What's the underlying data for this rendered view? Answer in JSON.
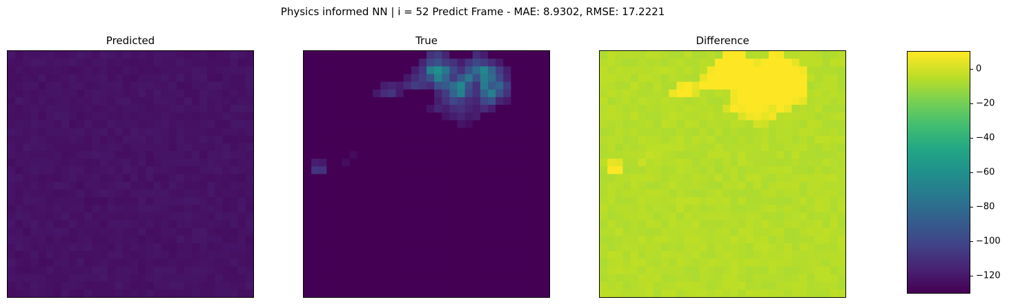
{
  "chart_data": [
    {
      "type": "heatmap",
      "title": "Predicted",
      "grid_size": 32,
      "base_value": -123,
      "value_range": [
        -130,
        10
      ]
    },
    {
      "type": "heatmap",
      "title": "True",
      "grid_size": 32,
      "base_value": -130,
      "value_range": [
        -130,
        10
      ],
      "hot_cells": [
        {
          "row": 0,
          "col": 16,
          "value": -110
        },
        {
          "row": 0,
          "col": 17,
          "value": -105
        },
        {
          "row": 0,
          "col": 18,
          "value": -115
        },
        {
          "row": 0,
          "col": 22,
          "value": -112
        },
        {
          "row": 0,
          "col": 23,
          "value": -118
        },
        {
          "row": 1,
          "col": 15,
          "value": -115
        },
        {
          "row": 1,
          "col": 16,
          "value": -100
        },
        {
          "row": 1,
          "col": 17,
          "value": -95
        },
        {
          "row": 1,
          "col": 18,
          "value": -105
        },
        {
          "row": 1,
          "col": 19,
          "value": -110
        },
        {
          "row": 1,
          "col": 20,
          "value": -118
        },
        {
          "row": 1,
          "col": 21,
          "value": -108
        },
        {
          "row": 1,
          "col": 22,
          "value": -100
        },
        {
          "row": 1,
          "col": 23,
          "value": -105
        },
        {
          "row": 1,
          "col": 24,
          "value": -112
        },
        {
          "row": 1,
          "col": 25,
          "value": -120
        },
        {
          "row": 2,
          "col": 14,
          "value": -118
        },
        {
          "row": 2,
          "col": 15,
          "value": -108
        },
        {
          "row": 2,
          "col": 16,
          "value": -70
        },
        {
          "row": 2,
          "col": 17,
          "value": -60
        },
        {
          "row": 2,
          "col": 18,
          "value": -75
        },
        {
          "row": 2,
          "col": 19,
          "value": -100
        },
        {
          "row": 2,
          "col": 20,
          "value": -110
        },
        {
          "row": 2,
          "col": 21,
          "value": -95
        },
        {
          "row": 2,
          "col": 22,
          "value": -80
        },
        {
          "row": 2,
          "col": 23,
          "value": -65
        },
        {
          "row": 2,
          "col": 24,
          "value": -85
        },
        {
          "row": 2,
          "col": 25,
          "value": -105
        },
        {
          "row": 2,
          "col": 26,
          "value": -118
        },
        {
          "row": 3,
          "col": 13,
          "value": -120
        },
        {
          "row": 3,
          "col": 14,
          "value": -112
        },
        {
          "row": 3,
          "col": 15,
          "value": -105
        },
        {
          "row": 3,
          "col": 16,
          "value": -95
        },
        {
          "row": 3,
          "col": 17,
          "value": -68
        },
        {
          "row": 3,
          "col": 18,
          "value": -85
        },
        {
          "row": 3,
          "col": 19,
          "value": -105
        },
        {
          "row": 3,
          "col": 20,
          "value": -90
        },
        {
          "row": 3,
          "col": 21,
          "value": -75
        },
        {
          "row": 3,
          "col": 22,
          "value": -95
        },
        {
          "row": 3,
          "col": 23,
          "value": -70
        },
        {
          "row": 3,
          "col": 24,
          "value": -80
        },
        {
          "row": 3,
          "col": 25,
          "value": -100
        },
        {
          "row": 3,
          "col": 26,
          "value": -115
        },
        {
          "row": 4,
          "col": 10,
          "value": -118
        },
        {
          "row": 4,
          "col": 11,
          "value": -115
        },
        {
          "row": 4,
          "col": 12,
          "value": -118
        },
        {
          "row": 4,
          "col": 13,
          "value": -112
        },
        {
          "row": 4,
          "col": 14,
          "value": -105
        },
        {
          "row": 4,
          "col": 15,
          "value": -108
        },
        {
          "row": 4,
          "col": 16,
          "value": -112
        },
        {
          "row": 4,
          "col": 17,
          "value": -95
        },
        {
          "row": 4,
          "col": 18,
          "value": -90
        },
        {
          "row": 4,
          "col": 19,
          "value": -80
        },
        {
          "row": 4,
          "col": 20,
          "value": -65
        },
        {
          "row": 4,
          "col": 21,
          "value": -95
        },
        {
          "row": 4,
          "col": 22,
          "value": -110
        },
        {
          "row": 4,
          "col": 23,
          "value": -72
        },
        {
          "row": 4,
          "col": 24,
          "value": -90
        },
        {
          "row": 4,
          "col": 25,
          "value": -85
        },
        {
          "row": 4,
          "col": 26,
          "value": -105
        },
        {
          "row": 5,
          "col": 9,
          "value": -120
        },
        {
          "row": 5,
          "col": 10,
          "value": -112
        },
        {
          "row": 5,
          "col": 11,
          "value": -108
        },
        {
          "row": 5,
          "col": 12,
          "value": -120
        },
        {
          "row": 5,
          "col": 17,
          "value": -115
        },
        {
          "row": 5,
          "col": 18,
          "value": -105
        },
        {
          "row": 5,
          "col": 19,
          "value": -85
        },
        {
          "row": 5,
          "col": 20,
          "value": -70
        },
        {
          "row": 5,
          "col": 21,
          "value": -100
        },
        {
          "row": 5,
          "col": 22,
          "value": -110
        },
        {
          "row": 5,
          "col": 23,
          "value": -85
        },
        {
          "row": 5,
          "col": 24,
          "value": -70
        },
        {
          "row": 5,
          "col": 25,
          "value": -95
        },
        {
          "row": 5,
          "col": 26,
          "value": -110
        },
        {
          "row": 6,
          "col": 17,
          "value": -118
        },
        {
          "row": 6,
          "col": 18,
          "value": -110
        },
        {
          "row": 6,
          "col": 19,
          "value": -100
        },
        {
          "row": 6,
          "col": 20,
          "value": -105
        },
        {
          "row": 6,
          "col": 21,
          "value": -112
        },
        {
          "row": 6,
          "col": 22,
          "value": -115
        },
        {
          "row": 6,
          "col": 23,
          "value": -100
        },
        {
          "row": 6,
          "col": 24,
          "value": -95
        },
        {
          "row": 6,
          "col": 25,
          "value": -115
        },
        {
          "row": 6,
          "col": 26,
          "value": -120
        },
        {
          "row": 7,
          "col": 16,
          "value": -122
        },
        {
          "row": 7,
          "col": 17,
          "value": -115
        },
        {
          "row": 7,
          "col": 18,
          "value": -118
        },
        {
          "row": 7,
          "col": 19,
          "value": -112
        },
        {
          "row": 7,
          "col": 20,
          "value": -110
        },
        {
          "row": 7,
          "col": 21,
          "value": -115
        },
        {
          "row": 7,
          "col": 22,
          "value": -118
        },
        {
          "row": 7,
          "col": 23,
          "value": -112
        },
        {
          "row": 7,
          "col": 24,
          "value": -118
        },
        {
          "row": 8,
          "col": 18,
          "value": -122
        },
        {
          "row": 8,
          "col": 19,
          "value": -118
        },
        {
          "row": 8,
          "col": 20,
          "value": -115
        },
        {
          "row": 8,
          "col": 21,
          "value": -120
        },
        {
          "row": 8,
          "col": 22,
          "value": -118
        },
        {
          "row": 9,
          "col": 20,
          "value": -122
        },
        {
          "row": 9,
          "col": 21,
          "value": -125
        },
        {
          "row": 13,
          "col": 6,
          "value": -126
        },
        {
          "row": 14,
          "col": 1,
          "value": -118
        },
        {
          "row": 14,
          "col": 2,
          "value": -120
        },
        {
          "row": 14,
          "col": 5,
          "value": -125
        },
        {
          "row": 15,
          "col": 1,
          "value": -108
        },
        {
          "row": 15,
          "col": 2,
          "value": -110
        }
      ]
    },
    {
      "type": "heatmap",
      "title": "Difference",
      "grid_size": 32,
      "derived": "True minus Predicted",
      "value_range": [
        -130,
        10
      ]
    }
  ],
  "figure": {
    "suptitle": "Physics informed NN | i = 52 Predict Frame - MAE: 8.9302, RMSE: 17.2221",
    "colormap": "viridis"
  },
  "colorbar": {
    "vmin": -130,
    "vmax": 10,
    "ticks": [
      0,
      -20,
      -40,
      -60,
      -80,
      -100,
      -120
    ],
    "tick_labels": [
      "0",
      "−20",
      "−40",
      "−60",
      "−80",
      "−100",
      "−120"
    ]
  }
}
